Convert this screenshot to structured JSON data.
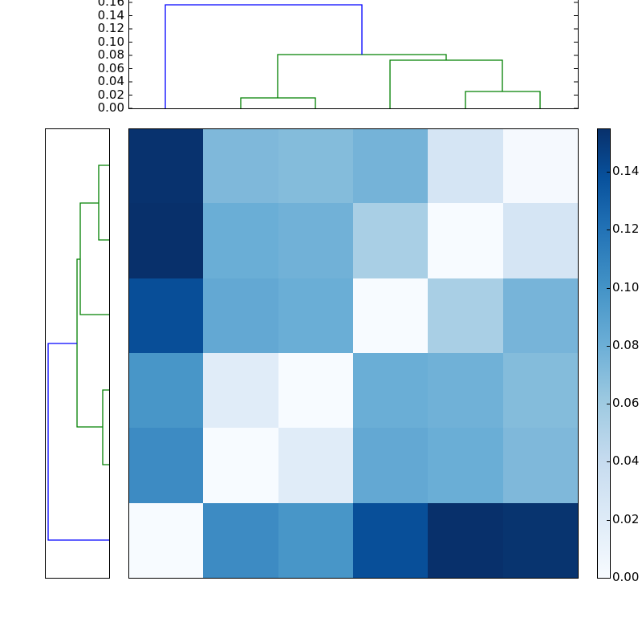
{
  "chart_data": {
    "type": "heatmap",
    "title": "",
    "description": "Clustered distance matrix heatmap with top and left dendrograms",
    "colormap": "Blues",
    "matrix": [
      [
        0.155,
        0.07,
        0.068,
        0.073,
        0.021,
        0.0
      ],
      [
        0.155,
        0.078,
        0.073,
        0.042,
        0.0,
        0.021
      ],
      [
        0.13,
        0.083,
        0.078,
        0.0,
        0.042,
        0.073
      ],
      [
        0.093,
        0.016,
        0.0,
        0.081,
        0.076,
        0.068
      ],
      [
        0.1,
        0.0,
        0.016,
        0.083,
        0.078,
        0.07
      ],
      [
        0.0,
        0.1,
        0.093,
        0.13,
        0.155,
        0.15
      ]
    ],
    "cell_colors": [
      [
        "#08326e",
        "#7fb8da",
        "#84bcdb",
        "#75b3d8",
        "#d5e5f4",
        "#f5f9fe"
      ],
      [
        "#08306b",
        "#6aaed6",
        "#71b1d7",
        "#a9cfe5",
        "#f7fbff",
        "#d5e5f4"
      ],
      [
        "#084e98",
        "#63a8d3",
        "#6aaed6",
        "#f7fbff",
        "#a9cfe5",
        "#77b4d9"
      ],
      [
        "#4896c8",
        "#e0ecf8",
        "#f7fbff",
        "#6aaed6",
        "#70b1d7",
        "#84bcdb"
      ],
      [
        "#3d8bc3",
        "#f7fbff",
        "#e0ecf8",
        "#63a8d3",
        "#6aaed6",
        "#7fb8da"
      ],
      [
        "#f7fbff",
        "#3d8bc3",
        "#4896c8",
        "#084f99",
        "#08306b",
        "#08346f"
      ]
    ],
    "colorbar": {
      "vmin": 0.0,
      "vmax": 0.155,
      "ticks": [
        "0.00",
        "0.02",
        "0.04",
        "0.06",
        "0.08",
        "0.10",
        "0.12",
        "0.14"
      ]
    },
    "top_dendrogram": {
      "yaxis_ticks": [
        "0.00",
        "0.02",
        "0.04",
        "0.06",
        "0.08",
        "0.10",
        "0.12",
        "0.14",
        "0.16"
      ],
      "ylim": [
        0.0,
        0.163
      ],
      "links": [
        {
          "color": "#008000",
          "height": 0.016,
          "left": 1,
          "right": 2
        },
        {
          "color": "#008000",
          "height": 0.026,
          "left": 4,
          "right": 5
        },
        {
          "color": "#008000",
          "height": 0.073,
          "left": 3,
          "right": "4-5"
        },
        {
          "color": "#008000",
          "height": 0.081,
          "left": "1-2",
          "right": "3-4-5"
        },
        {
          "color": "#0000ff",
          "height": 0.156,
          "left": 0,
          "right": "1-5"
        }
      ]
    },
    "left_dendrogram": {
      "links": [
        {
          "color": "#008000",
          "height": 0.016,
          "top": 0,
          "bottom": 1
        },
        {
          "color": "#008000",
          "height": 0.043,
          "top": "0-1",
          "bottom": 2
        },
        {
          "color": "#008000",
          "height": 0.01,
          "top": 3,
          "bottom": 4
        },
        {
          "color": "#008000",
          "height": 0.048,
          "top": "0-2",
          "bottom": "3-4"
        },
        {
          "color": "#0000ff",
          "height": 0.096,
          "top": "0-4",
          "bottom": 5
        }
      ]
    }
  },
  "colors": {
    "cluster_primary": "#008000",
    "cluster_root": "#0000ff",
    "axis": "#000000"
  }
}
